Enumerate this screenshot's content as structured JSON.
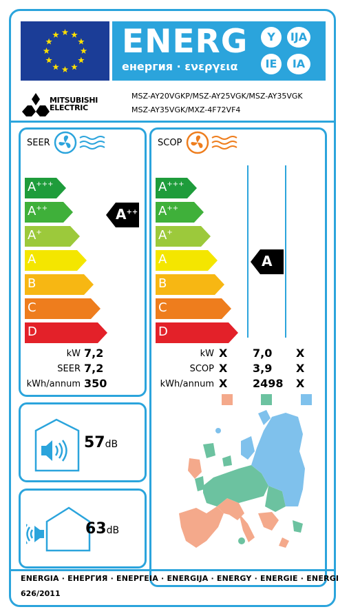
{
  "header": {
    "title": "ENERG",
    "subtitle": "енергия · ενεργεια",
    "suffixes": [
      "Y",
      "IJA",
      "IE",
      "IA"
    ]
  },
  "brand": {
    "line1": "MITSUBISHI",
    "line2": "ELECTRIC"
  },
  "models": {
    "line1": "MSZ-AY20VGKP/MSZ-AY25VGK/MSZ-AY35VGK",
    "line2": "MSZ-AY35VGK/MXZ-4F72VF4"
  },
  "classes": [
    {
      "label": "A",
      "sup": "+++",
      "color": "#1e9c3b"
    },
    {
      "label": "A",
      "sup": "++",
      "color": "#3fb03a"
    },
    {
      "label": "A",
      "sup": "+",
      "color": "#9cc93b"
    },
    {
      "label": "A",
      "sup": "",
      "color": "#f4e600"
    },
    {
      "label": "B",
      "sup": "",
      "color": "#f7b713"
    },
    {
      "label": "C",
      "sup": "",
      "color": "#ee7d1d"
    },
    {
      "label": "D",
      "sup": "",
      "color": "#e32129"
    }
  ],
  "seer": {
    "label": "SEER",
    "rating": {
      "label": "A",
      "sup": "++",
      "class_index": 1
    },
    "rows": [
      {
        "label": "kW",
        "value": "7,2"
      },
      {
        "label": "SEER",
        "value": "7,2"
      },
      {
        "label": "kWh/annum",
        "value": "350"
      }
    ]
  },
  "scop": {
    "label": "SCOP",
    "rating": {
      "label": "A",
      "sup": "",
      "class_index": 3
    },
    "rows": [
      {
        "label": "kW",
        "values": [
          "X",
          "7,0",
          "X"
        ]
      },
      {
        "label": "SCOP",
        "values": [
          "X",
          "3,9",
          "X"
        ]
      },
      {
        "label": "kWh/annum",
        "values": [
          "X",
          "2498",
          "X"
        ]
      }
    ],
    "zone_colors": [
      "#f4a98b",
      "#6cc2a0",
      "#7fc1ec"
    ]
  },
  "noise": {
    "indoor": {
      "value": "57",
      "unit": "dB"
    },
    "outdoor": {
      "value": "63",
      "unit": "dB"
    }
  },
  "footer": {
    "languages": "ENERGIA · ЕНЕРГИЯ · ΕΝΕΡΓΕΙΑ · ENERGIJA · ENERGY · ENERGIE · ENERGI",
    "regulation": "626/2011"
  },
  "colors": {
    "accent": "#2ba4dc",
    "eu_blue": "#1b3d97",
    "star": "#ffe000",
    "cooling_fan": "#2ba4dc",
    "heating_fan": "#ee7d1d"
  }
}
